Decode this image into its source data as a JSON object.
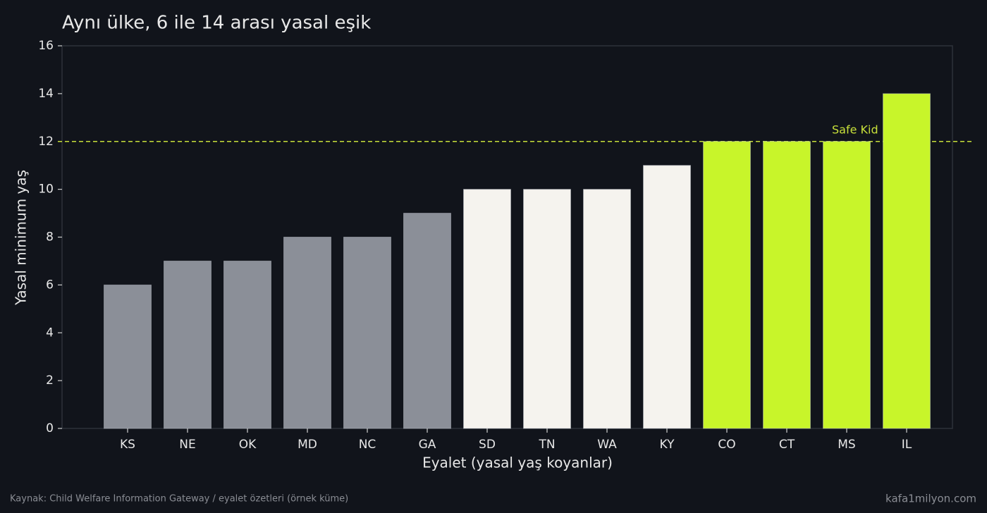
{
  "chart_data": {
    "type": "bar",
    "title": "Aynı ülke, 6 ile 14 arası yasal eşik",
    "x_label": "Eyalet (yasal yaş koyanlar)",
    "y_label": "Yasal minimum yaş",
    "categories": [
      "KS",
      "NE",
      "OK",
      "MD",
      "NC",
      "GA",
      "SD",
      "TN",
      "WA",
      "KY",
      "CO",
      "CT",
      "MS",
      "IL"
    ],
    "values": [
      6,
      7,
      7,
      8,
      8,
      9,
      10,
      10,
      10,
      11,
      12,
      12,
      12,
      14
    ],
    "colors": [
      "#8b8f98",
      "#8b8f98",
      "#8b8f98",
      "#8b8f98",
      "#8b8f98",
      "#8b8f98",
      "#f5f3ee",
      "#f5f3ee",
      "#f5f3ee",
      "#f5f3ee",
      "#c8f52a",
      "#c8f52a",
      "#c8f52a",
      "#c8f52a"
    ],
    "ylim": [
      0,
      16
    ],
    "yticks": [
      0,
      2,
      4,
      6,
      8,
      10,
      12,
      14,
      16
    ],
    "reference_line": {
      "value": 12,
      "label": "Safe Kid",
      "color": "#c8e03a"
    },
    "source": "Kaynak: Child Welfare Information Gateway / eyalet özetleri (örnek küme)",
    "watermark": "kafa1milyon.com"
  }
}
